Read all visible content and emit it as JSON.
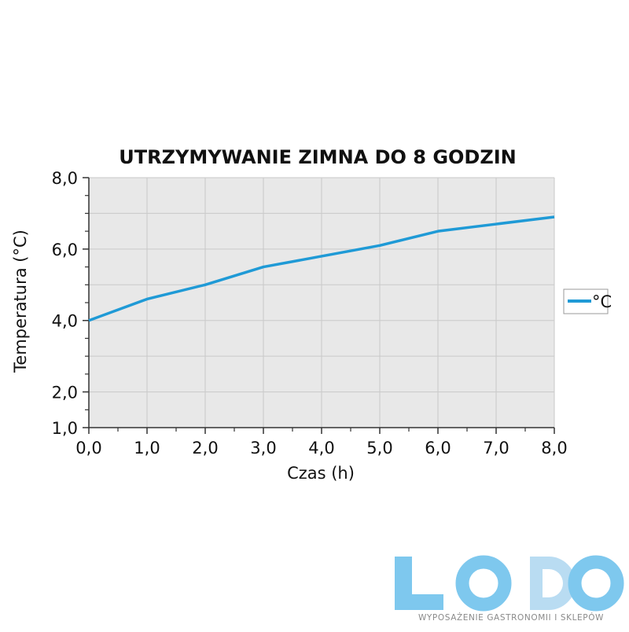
{
  "chart_data": {
    "type": "line",
    "title": "UTRZYMYWANIE ZIMNA DO 8 GODZIN",
    "xlabel": "Czas (h)",
    "ylabel": "Temperatura (°C)",
    "xlim": [
      0,
      8
    ],
    "ylim": [
      1,
      8
    ],
    "x_ticks": [
      "0,0",
      "1,0",
      "2,0",
      "3,0",
      "4,0",
      "5,0",
      "6,0",
      "7,0",
      "8,0"
    ],
    "y_ticks": [
      {
        "value": 1,
        "label": "1,0"
      },
      {
        "value": 2,
        "label": "2,0"
      },
      {
        "value": 4,
        "label": "4,0"
      },
      {
        "value": 6,
        "label": "6,0"
      },
      {
        "value": 8,
        "label": "8,0"
      }
    ],
    "x_minor_ticks": [
      0.5,
      1.5,
      2.5,
      3.5,
      4.5,
      5.5,
      6.5,
      7.5
    ],
    "y_minor_ticks": [
      1.5,
      2.5,
      3,
      3.5,
      4.5,
      5,
      5.5,
      6.5,
      7,
      7.5
    ],
    "grid": true,
    "legend_position": "right",
    "series": [
      {
        "name": "°C",
        "color": "#1f9ad6",
        "x": [
          0,
          1,
          2,
          3,
          4,
          5,
          6,
          7,
          8
        ],
        "y": [
          4.0,
          4.6,
          5.0,
          5.5,
          5.8,
          6.1,
          6.5,
          6.7,
          6.9
        ]
      }
    ]
  },
  "logo": {
    "text": "LODO",
    "subtitle": "WYPOSAŻENIE GASTRONOMII I SKLEPÓW",
    "colors": [
      "#7ec8ee",
      "#b9dcf2"
    ]
  }
}
